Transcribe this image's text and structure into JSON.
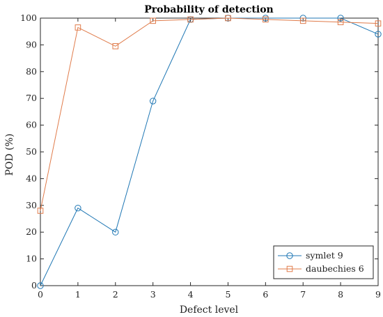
{
  "chart_data": {
    "type": "line",
    "title": "Probability of detection",
    "xlabel": "Defect level",
    "ylabel": "POD (%)",
    "x": [
      0,
      1,
      2,
      3,
      4,
      5,
      6,
      7,
      8,
      9
    ],
    "xlim": [
      0,
      9
    ],
    "ylim": [
      0,
      100
    ],
    "xticks": [
      "0",
      "1",
      "2",
      "3",
      "4",
      "5",
      "6",
      "7",
      "8",
      "9"
    ],
    "yticks": [
      "0",
      "10",
      "20",
      "30",
      "40",
      "50",
      "60",
      "70",
      "80",
      "90",
      "100"
    ],
    "grid": false,
    "legend_position": "bottom-right",
    "series": [
      {
        "name": "symlet 9",
        "marker": "circle",
        "color": "#1f77b4",
        "values": [
          0,
          29,
          20,
          69,
          99.5,
          100,
          100,
          100,
          100,
          94
        ]
      },
      {
        "name": "daubechies 6",
        "marker": "square",
        "color": "#e07b4a",
        "values": [
          28,
          96.5,
          89.5,
          99,
          99.5,
          100,
          99.5,
          99,
          98.5,
          98
        ]
      }
    ]
  }
}
